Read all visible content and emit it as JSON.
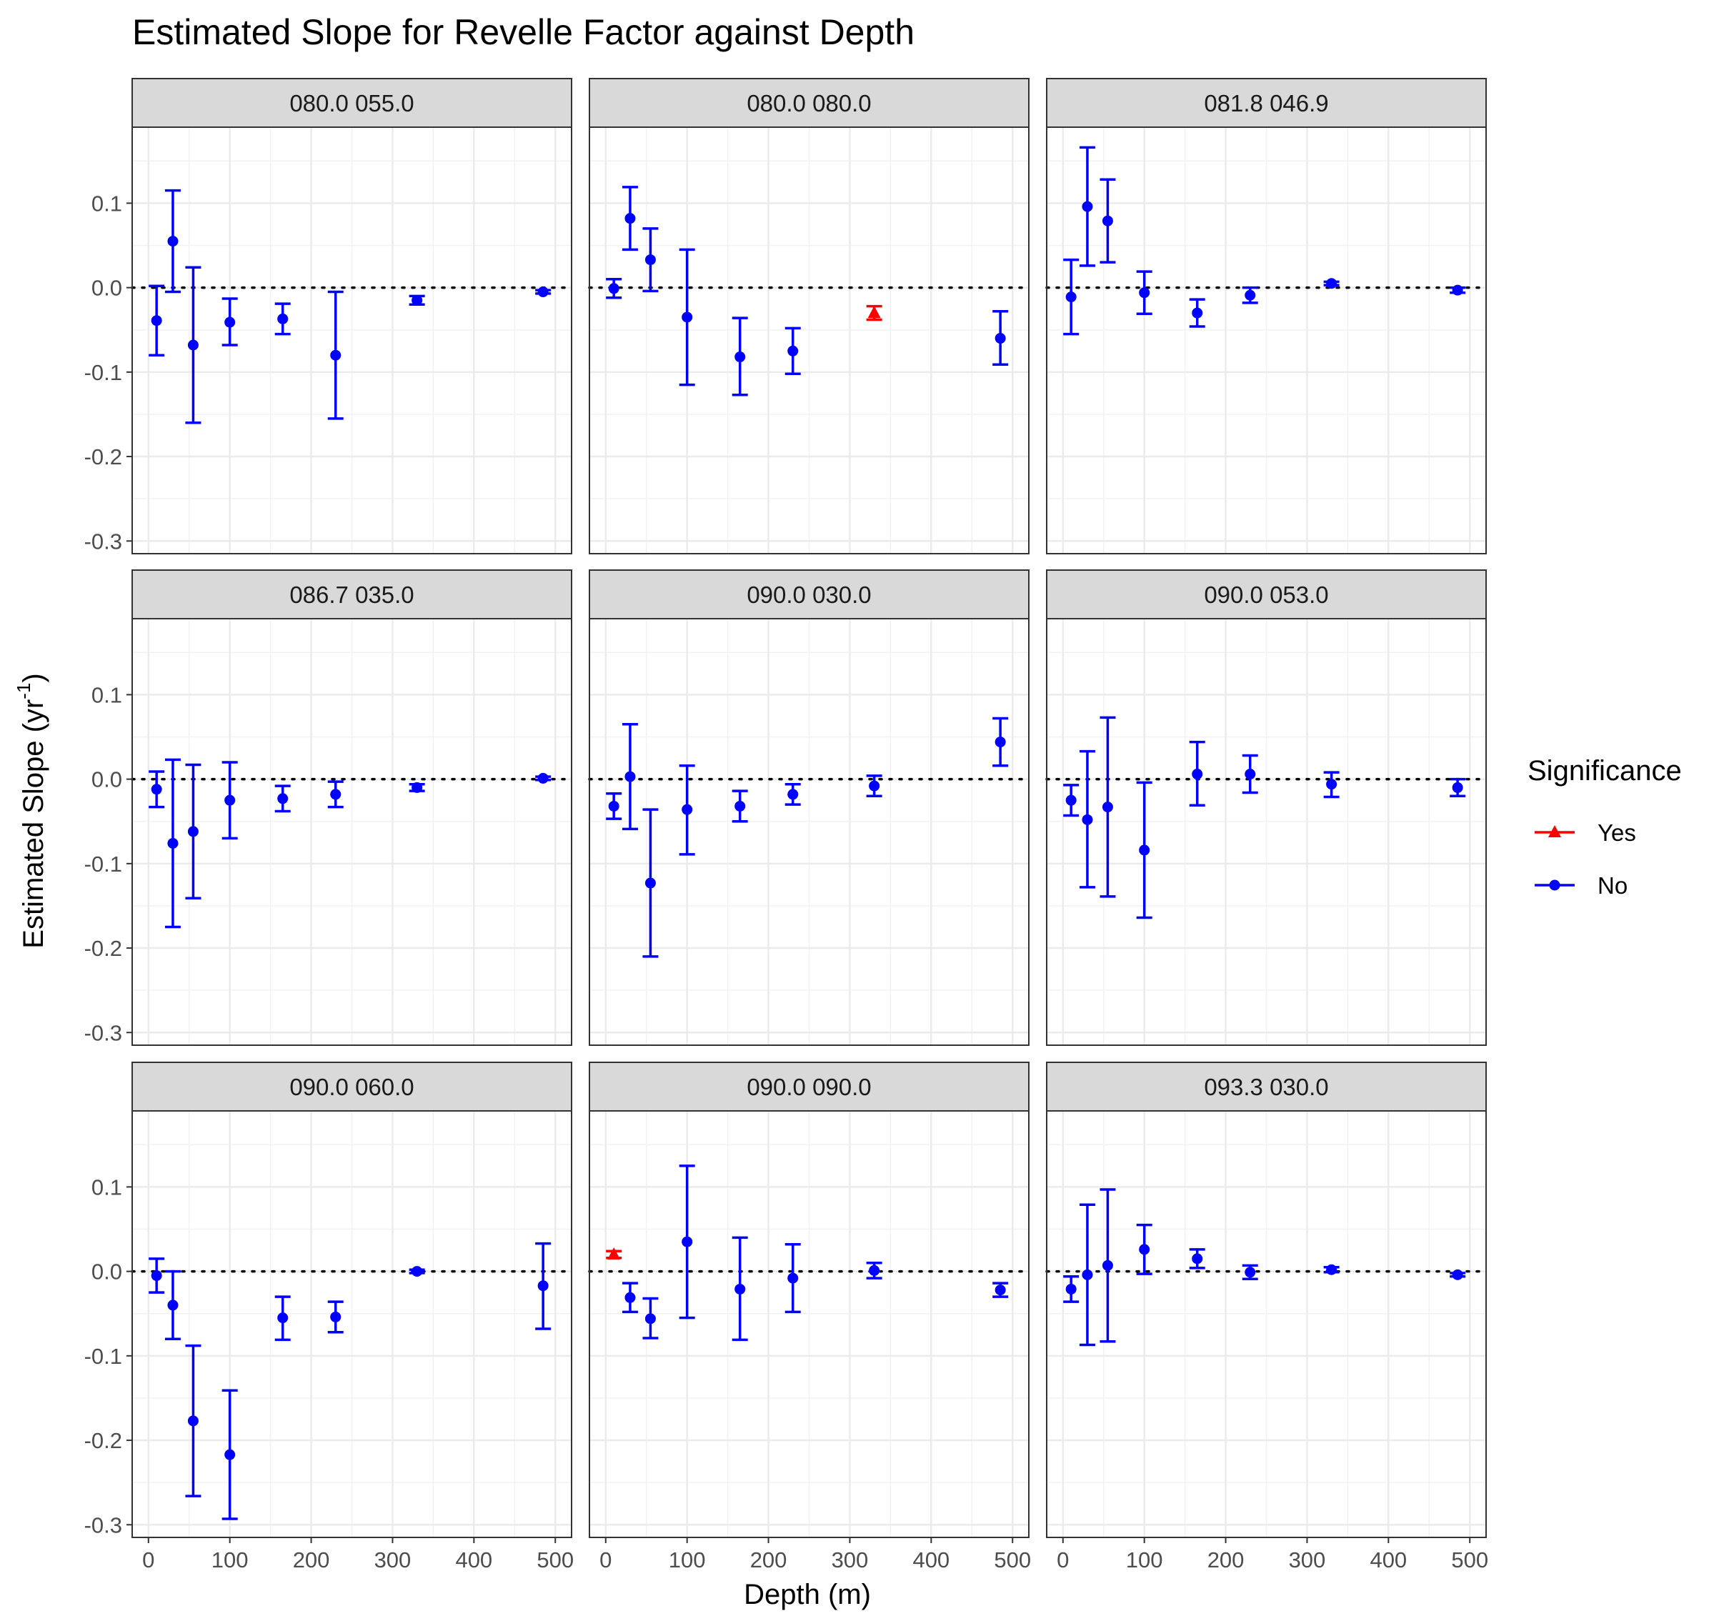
{
  "chart_data": {
    "type": "scatter",
    "variant": "faceted point-range with error bars",
    "title": "Estimated Slope for Revelle Factor against Depth",
    "xlabel": "Depth (m)",
    "ylabel_main": "Estimated Slope (yr",
    "ylabel_sup": "-1",
    "ylabel_close": ")",
    "xlim": [
      -20,
      520
    ],
    "ylim": [
      -0.315,
      0.19
    ],
    "x_ticks": [
      0,
      100,
      200,
      300,
      400,
      500
    ],
    "x_tick_labels": [
      "0",
      "100",
      "200",
      "300",
      "400",
      "500"
    ],
    "y_ticks": [
      0.1,
      0.0,
      -0.1,
      -0.2,
      -0.3
    ],
    "y_tick_labels": [
      "0.1",
      "0.0",
      "-0.1",
      "-0.2",
      "-0.3"
    ],
    "reference_line": 0,
    "grid": true,
    "legend": {
      "title": "Significance",
      "position": "right",
      "entries": [
        {
          "label": "Yes",
          "color": "#ff0000",
          "shape": "triangle"
        },
        {
          "label": "No",
          "color": "#0000ff",
          "shape": "circle"
        }
      ]
    },
    "facets": [
      {
        "label": "080.0 055.0",
        "points": [
          {
            "x": 10,
            "y": -0.039,
            "lo": -0.08,
            "hi": 0.002,
            "sig": "No"
          },
          {
            "x": 30,
            "y": 0.055,
            "lo": -0.005,
            "hi": 0.115,
            "sig": "No"
          },
          {
            "x": 55,
            "y": -0.068,
            "lo": -0.16,
            "hi": 0.024,
            "sig": "No"
          },
          {
            "x": 100,
            "y": -0.041,
            "lo": -0.068,
            "hi": -0.013,
            "sig": "No"
          },
          {
            "x": 165,
            "y": -0.037,
            "lo": -0.055,
            "hi": -0.019,
            "sig": "No"
          },
          {
            "x": 230,
            "y": -0.08,
            "lo": -0.155,
            "hi": -0.005,
            "sig": "No"
          },
          {
            "x": 330,
            "y": -0.015,
            "lo": -0.02,
            "hi": -0.01,
            "sig": "No"
          },
          {
            "x": 485,
            "y": -0.005,
            "lo": -0.007,
            "hi": -0.003,
            "sig": "No"
          }
        ]
      },
      {
        "label": "080.0 080.0",
        "points": [
          {
            "x": 10,
            "y": -0.001,
            "lo": -0.012,
            "hi": 0.01,
            "sig": "No"
          },
          {
            "x": 30,
            "y": 0.082,
            "lo": 0.045,
            "hi": 0.119,
            "sig": "No"
          },
          {
            "x": 55,
            "y": 0.033,
            "lo": -0.004,
            "hi": 0.07,
            "sig": "No"
          },
          {
            "x": 100,
            "y": -0.035,
            "lo": -0.115,
            "hi": 0.045,
            "sig": "No"
          },
          {
            "x": 165,
            "y": -0.082,
            "lo": -0.127,
            "hi": -0.036,
            "sig": "No"
          },
          {
            "x": 230,
            "y": -0.075,
            "lo": -0.102,
            "hi": -0.048,
            "sig": "No"
          },
          {
            "x": 330,
            "y": -0.03,
            "lo": -0.038,
            "hi": -0.022,
            "sig": "Yes"
          },
          {
            "x": 485,
            "y": -0.06,
            "lo": -0.091,
            "hi": -0.028,
            "sig": "No"
          }
        ]
      },
      {
        "label": "081.8 046.9",
        "points": [
          {
            "x": 10,
            "y": -0.011,
            "lo": -0.055,
            "hi": 0.033,
            "sig": "No"
          },
          {
            "x": 30,
            "y": 0.096,
            "lo": 0.026,
            "hi": 0.166,
            "sig": "No"
          },
          {
            "x": 55,
            "y": 0.079,
            "lo": 0.03,
            "hi": 0.128,
            "sig": "No"
          },
          {
            "x": 100,
            "y": -0.006,
            "lo": -0.031,
            "hi": 0.019,
            "sig": "No"
          },
          {
            "x": 165,
            "y": -0.03,
            "lo": -0.046,
            "hi": -0.014,
            "sig": "No"
          },
          {
            "x": 230,
            "y": -0.009,
            "lo": -0.018,
            "hi": 0.0,
            "sig": "No"
          },
          {
            "x": 330,
            "y": 0.005,
            "lo": 0.003,
            "hi": 0.007,
            "sig": "No"
          },
          {
            "x": 485,
            "y": -0.003,
            "lo": -0.006,
            "hi": 0.0,
            "sig": "No"
          }
        ]
      },
      {
        "label": "086.7 035.0",
        "points": [
          {
            "x": 10,
            "y": -0.012,
            "lo": -0.033,
            "hi": 0.009,
            "sig": "No"
          },
          {
            "x": 30,
            "y": -0.076,
            "lo": -0.175,
            "hi": 0.023,
            "sig": "No"
          },
          {
            "x": 55,
            "y": -0.062,
            "lo": -0.141,
            "hi": 0.017,
            "sig": "No"
          },
          {
            "x": 100,
            "y": -0.025,
            "lo": -0.07,
            "hi": 0.02,
            "sig": "No"
          },
          {
            "x": 165,
            "y": -0.023,
            "lo": -0.038,
            "hi": -0.008,
            "sig": "No"
          },
          {
            "x": 230,
            "y": -0.018,
            "lo": -0.033,
            "hi": -0.003,
            "sig": "No"
          },
          {
            "x": 330,
            "y": -0.01,
            "lo": -0.014,
            "hi": -0.006,
            "sig": "No"
          },
          {
            "x": 485,
            "y": 0.001,
            "lo": -0.001,
            "hi": 0.003,
            "sig": "No"
          }
        ]
      },
      {
        "label": "090.0 030.0",
        "points": [
          {
            "x": 10,
            "y": -0.032,
            "lo": -0.047,
            "hi": -0.017,
            "sig": "No"
          },
          {
            "x": 30,
            "y": 0.003,
            "lo": -0.059,
            "hi": 0.065,
            "sig": "No"
          },
          {
            "x": 55,
            "y": -0.123,
            "lo": -0.21,
            "hi": -0.036,
            "sig": "No"
          },
          {
            "x": 100,
            "y": -0.036,
            "lo": -0.089,
            "hi": 0.016,
            "sig": "No"
          },
          {
            "x": 165,
            "y": -0.032,
            "lo": -0.05,
            "hi": -0.014,
            "sig": "No"
          },
          {
            "x": 230,
            "y": -0.018,
            "lo": -0.03,
            "hi": -0.006,
            "sig": "No"
          },
          {
            "x": 330,
            "y": -0.008,
            "lo": -0.02,
            "hi": 0.004,
            "sig": "No"
          },
          {
            "x": 485,
            "y": 0.044,
            "lo": 0.016,
            "hi": 0.072,
            "sig": "No"
          }
        ]
      },
      {
        "label": "090.0 053.0",
        "points": [
          {
            "x": 10,
            "y": -0.025,
            "lo": -0.043,
            "hi": -0.007,
            "sig": "No"
          },
          {
            "x": 30,
            "y": -0.048,
            "lo": -0.128,
            "hi": 0.033,
            "sig": "No"
          },
          {
            "x": 55,
            "y": -0.033,
            "lo": -0.139,
            "hi": 0.073,
            "sig": "No"
          },
          {
            "x": 100,
            "y": -0.084,
            "lo": -0.164,
            "hi": -0.004,
            "sig": "No"
          },
          {
            "x": 165,
            "y": 0.006,
            "lo": -0.031,
            "hi": 0.044,
            "sig": "No"
          },
          {
            "x": 230,
            "y": 0.006,
            "lo": -0.016,
            "hi": 0.028,
            "sig": "No"
          },
          {
            "x": 330,
            "y": -0.006,
            "lo": -0.021,
            "hi": 0.008,
            "sig": "No"
          },
          {
            "x": 485,
            "y": -0.01,
            "lo": -0.02,
            "hi": 0.0,
            "sig": "No"
          }
        ]
      },
      {
        "label": "090.0 060.0",
        "points": [
          {
            "x": 10,
            "y": -0.005,
            "lo": -0.025,
            "hi": 0.015,
            "sig": "No"
          },
          {
            "x": 30,
            "y": -0.04,
            "lo": -0.08,
            "hi": 0.0,
            "sig": "No"
          },
          {
            "x": 55,
            "y": -0.177,
            "lo": -0.266,
            "hi": -0.088,
            "sig": "No"
          },
          {
            "x": 100,
            "y": -0.217,
            "lo": -0.293,
            "hi": -0.141,
            "sig": "No"
          },
          {
            "x": 165,
            "y": -0.055,
            "lo": -0.081,
            "hi": -0.03,
            "sig": "No"
          },
          {
            "x": 230,
            "y": -0.054,
            "lo": -0.072,
            "hi": -0.036,
            "sig": "No"
          },
          {
            "x": 330,
            "y": 0.0,
            "lo": -0.002,
            "hi": 0.002,
            "sig": "No"
          },
          {
            "x": 485,
            "y": -0.017,
            "lo": -0.068,
            "hi": 0.033,
            "sig": "No"
          }
        ]
      },
      {
        "label": "090.0 090.0",
        "points": [
          {
            "x": 10,
            "y": 0.02,
            "lo": 0.016,
            "hi": 0.024,
            "sig": "Yes"
          },
          {
            "x": 30,
            "y": -0.031,
            "lo": -0.048,
            "hi": -0.014,
            "sig": "No"
          },
          {
            "x": 55,
            "y": -0.056,
            "lo": -0.079,
            "hi": -0.032,
            "sig": "No"
          },
          {
            "x": 100,
            "y": 0.035,
            "lo": -0.055,
            "hi": 0.125,
            "sig": "No"
          },
          {
            "x": 165,
            "y": -0.021,
            "lo": -0.081,
            "hi": 0.04,
            "sig": "No"
          },
          {
            "x": 230,
            "y": -0.008,
            "lo": -0.048,
            "hi": 0.032,
            "sig": "No"
          },
          {
            "x": 330,
            "y": 0.001,
            "lo": -0.008,
            "hi": 0.01,
            "sig": "No"
          },
          {
            "x": 485,
            "y": -0.022,
            "lo": -0.03,
            "hi": -0.014,
            "sig": "No"
          }
        ]
      },
      {
        "label": "093.3 030.0",
        "points": [
          {
            "x": 10,
            "y": -0.021,
            "lo": -0.036,
            "hi": -0.006,
            "sig": "No"
          },
          {
            "x": 30,
            "y": -0.004,
            "lo": -0.087,
            "hi": 0.079,
            "sig": "No"
          },
          {
            "x": 55,
            "y": 0.007,
            "lo": -0.083,
            "hi": 0.097,
            "sig": "No"
          },
          {
            "x": 100,
            "y": 0.026,
            "lo": -0.003,
            "hi": 0.055,
            "sig": "No"
          },
          {
            "x": 165,
            "y": 0.015,
            "lo": 0.004,
            "hi": 0.026,
            "sig": "No"
          },
          {
            "x": 230,
            "y": -0.001,
            "lo": -0.009,
            "hi": 0.007,
            "sig": "No"
          },
          {
            "x": 330,
            "y": 0.002,
            "lo": -0.001,
            "hi": 0.005,
            "sig": "No"
          },
          {
            "x": 485,
            "y": -0.004,
            "lo": -0.006,
            "hi": -0.002,
            "sig": "No"
          }
        ]
      }
    ]
  }
}
